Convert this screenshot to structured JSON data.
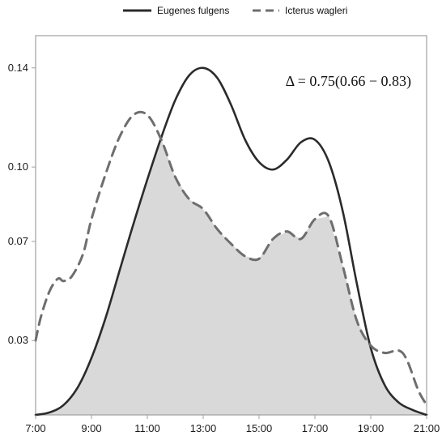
{
  "chart_data": {
    "type": "area",
    "legend": {
      "position": "top"
    },
    "grid": false,
    "xlim": [
      7,
      21
    ],
    "ylim": [
      0,
      0.153
    ],
    "x_ticks": [
      "7:00",
      "9:00",
      "11:00",
      "13:00",
      "15:00",
      "17:00",
      "19:00",
      "21:00"
    ],
    "y_ticks": [
      0.03,
      0.07,
      0.1,
      0.14
    ],
    "y_tick_labels": [
      "0.03",
      "0.07",
      "0.10",
      "0.14"
    ],
    "annotation": "Δ = 0.75(0.66 − 0.83)",
    "colors": {
      "solid": "#2b2b2b",
      "dashed": "#6e6e6e",
      "overlap": "#d9d9d9",
      "frame": "#a0a0a0"
    },
    "series": [
      {
        "name": "Eugenes fulgens",
        "style": "solid",
        "x": [
          7.0,
          7.5,
          8.0,
          8.5,
          9.0,
          9.5,
          10.0,
          10.5,
          11.0,
          11.5,
          12.0,
          12.5,
          13.0,
          13.5,
          14.0,
          14.5,
          15.0,
          15.5,
          16.0,
          16.5,
          17.0,
          17.5,
          18.0,
          18.5,
          19.0,
          19.5,
          20.0,
          20.5,
          21.0
        ],
        "y": [
          0.0,
          0.001,
          0.004,
          0.011,
          0.023,
          0.039,
          0.058,
          0.077,
          0.095,
          0.112,
          0.127,
          0.137,
          0.14,
          0.136,
          0.125,
          0.111,
          0.102,
          0.099,
          0.103,
          0.11,
          0.111,
          0.102,
          0.082,
          0.053,
          0.027,
          0.012,
          0.005,
          0.002,
          0.0
        ]
      },
      {
        "name": "Icterus wagleri",
        "style": "dashed",
        "x": [
          7.0,
          7.2,
          7.5,
          7.8,
          8.0,
          8.3,
          8.7,
          9.0,
          9.5,
          10.0,
          10.5,
          11.0,
          11.5,
          12.0,
          12.5,
          13.0,
          13.5,
          14.0,
          14.5,
          15.0,
          15.5,
          16.0,
          16.5,
          17.0,
          17.5,
          18.0,
          18.5,
          19.0,
          19.5,
          20.0,
          20.3,
          20.7,
          21.0
        ],
        "y": [
          0.03,
          0.04,
          0.05,
          0.055,
          0.054,
          0.056,
          0.065,
          0.079,
          0.097,
          0.112,
          0.121,
          0.121,
          0.111,
          0.096,
          0.087,
          0.083,
          0.075,
          0.069,
          0.064,
          0.063,
          0.071,
          0.074,
          0.071,
          0.079,
          0.08,
          0.06,
          0.038,
          0.028,
          0.025,
          0.026,
          0.022,
          0.01,
          0.004
        ]
      }
    ]
  }
}
